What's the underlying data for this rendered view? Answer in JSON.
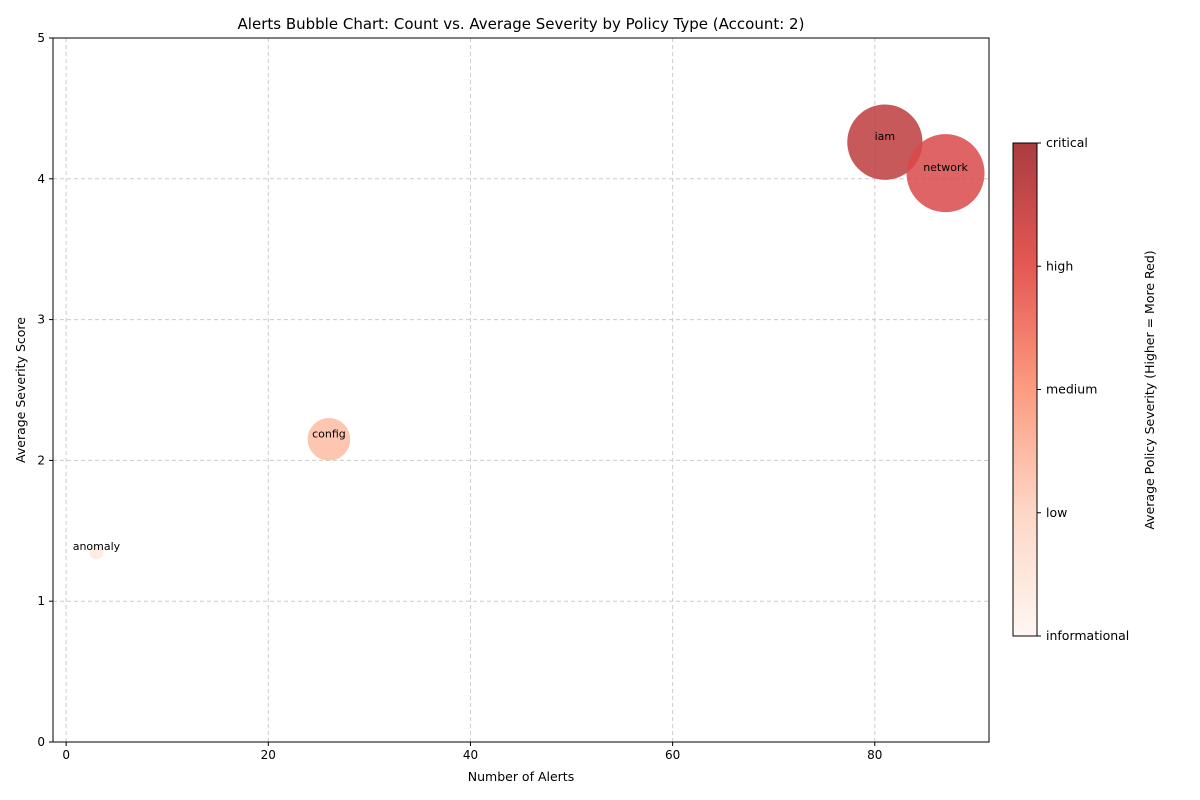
{
  "chart_data": {
    "type": "scatter",
    "title": "Alerts Bubble Chart: Count vs. Average Severity by Policy Type (Account: 2)",
    "xlabel": "Number of Alerts",
    "ylabel": "Average Severity Score",
    "xlim": [
      -1.3,
      91.3
    ],
    "ylim": [
      0,
      5
    ],
    "xticks": [
      "0",
      "20",
      "40",
      "60",
      "80"
    ],
    "yticks": [
      "0",
      "1",
      "2",
      "3",
      "4",
      "5"
    ],
    "grid": true,
    "points": [
      {
        "label": "anomaly",
        "x": 3,
        "y": 1.35,
        "color": "#fee7dd"
      },
      {
        "label": "config",
        "x": 26,
        "y": 2.15,
        "color": "#fcbca3"
      },
      {
        "label": "iam",
        "x": 81,
        "y": 4.26,
        "color": "#be3c3e"
      },
      {
        "label": "network",
        "x": 87,
        "y": 4.04,
        "color": "#d9494a"
      }
    ],
    "colorbar": {
      "label": "Average Policy Severity (Higher = More Red)",
      "ticks": [
        "informational",
        "low",
        "medium",
        "high",
        "critical"
      ],
      "colors": [
        "#fff5f0",
        "#fdd0bc",
        "#fc8a6a",
        "#e03b35",
        "#9b1a1f"
      ]
    }
  }
}
